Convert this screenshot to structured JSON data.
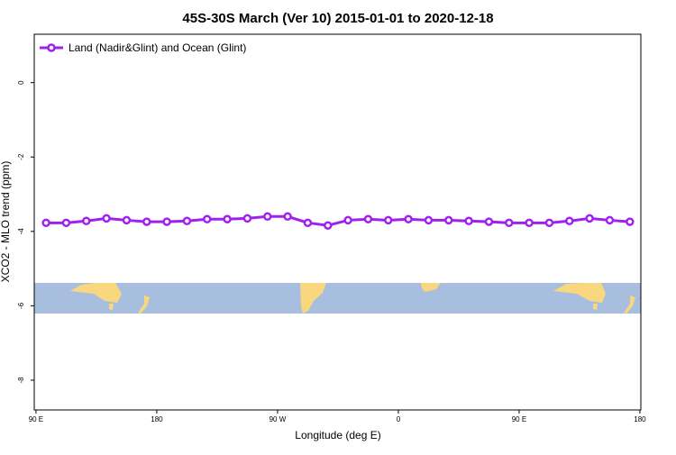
{
  "chart_data": {
    "type": "line",
    "title": "45S-30S March (Ver 10)   2015-01-01 to 2020-12-18",
    "x_label": "Longitude (deg E)",
    "y_label": "XCO2 - MLO trend (ppm)",
    "x": [
      97.5,
      112.5,
      127.5,
      142.5,
      157.5,
      172.5,
      187.5,
      202.5,
      217.5,
      232.5,
      247.5,
      262.5,
      277.5,
      292.5,
      307.5,
      322.5,
      337.5,
      352.5,
      367.5,
      382.5,
      397.5,
      412.5,
      427.5,
      442.5,
      457.5,
      472.5,
      487.5,
      502.5,
      517.5,
      532.5
    ],
    "series": [
      {
        "name": "Land (Nadir&Glint) and Ocean (Glint)",
        "color": "#a020f0",
        "values": [
          -3.77,
          -3.77,
          -3.72,
          -3.65,
          -3.7,
          -3.74,
          -3.74,
          -3.72,
          -3.67,
          -3.67,
          -3.65,
          -3.6,
          -3.6,
          -3.77,
          -3.84,
          -3.7,
          -3.67,
          -3.7,
          -3.67,
          -3.7,
          -3.7,
          -3.72,
          -3.74,
          -3.77,
          -3.77,
          -3.77,
          -3.72,
          -3.65,
          -3.7,
          -3.74
        ]
      }
    ],
    "xlim": [
      88.7,
      540.7
    ],
    "xticks": [
      {
        "value": 90,
        "label": "90 E"
      },
      180,
      {
        "value": 270,
        "label": "90 W"
      },
      {
        "value": 360,
        "label": "0"
      },
      {
        "value": 450,
        "label": "90 E"
      },
      {
        "value": 540,
        "label": "180"
      }
    ],
    "ylim": [
      -8.8,
      1.3
    ],
    "yticks": [
      0,
      -2,
      -4,
      -6,
      -8
    ],
    "legend": "top-left"
  }
}
